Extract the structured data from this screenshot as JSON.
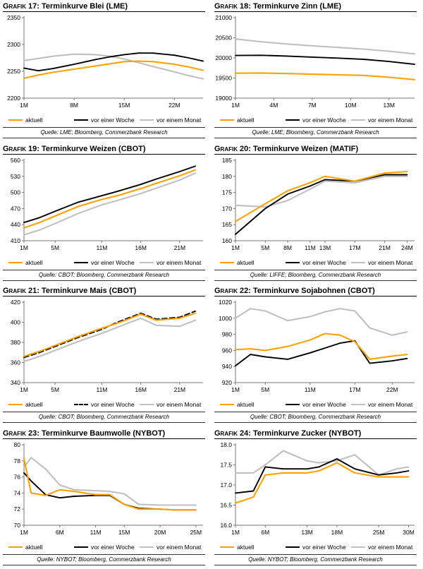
{
  "page": {
    "background": "#ffffff"
  },
  "colors": {
    "aktuell": "#FFA200",
    "woche": "#000000",
    "monat": "#C0C0C0",
    "axis": "#777777",
    "text": "#000000",
    "rule": "#333333"
  },
  "legend_labels": [
    "aktuell",
    "vor einer Woche",
    "vor einem Monat"
  ],
  "chart_data": [
    {
      "type": "line",
      "grafik_label": "Grafik 17:",
      "title": "Terminkurve Blei (LME)",
      "source": "Quelle: LME; Bloomberg, Commerzbank Research",
      "xtick_suffix": "M",
      "xlim": [
        1,
        26
      ],
      "xticks": [
        1,
        8,
        15,
        22
      ],
      "ylim": [
        2200,
        2350
      ],
      "yticks": [
        2200,
        2250,
        2300,
        2350
      ],
      "ytick_labels": [
        "2200",
        "2250",
        "2300",
        "2350"
      ],
      "x": [
        1,
        3,
        5,
        8,
        11,
        13,
        15,
        17,
        19,
        22,
        24,
        26
      ],
      "series": [
        {
          "name": "aktuell",
          "color": "aktuell",
          "dash": false,
          "values": [
            2237,
            2243,
            2248,
            2254,
            2260,
            2264,
            2268,
            2269,
            2268,
            2263,
            2258,
            2252
          ]
        },
        {
          "name": "vor einer Woche",
          "color": "woche",
          "dash": false,
          "values": [
            2256,
            2251,
            2255,
            2263,
            2272,
            2277,
            2281,
            2284,
            2284,
            2280,
            2275,
            2269
          ]
        },
        {
          "name": "vor einem Monat",
          "color": "monat",
          "dash": false,
          "values": [
            2270,
            2274,
            2278,
            2282,
            2281,
            2278,
            2273,
            2266,
            2259,
            2249,
            2242,
            2236
          ]
        }
      ]
    },
    {
      "type": "line",
      "grafik_label": "Grafik 18:",
      "title": "Terminkurve Zinn (LME)",
      "source": "Quelle: LME; Bloomberg, Commerzbank Research",
      "xtick_suffix": "M",
      "xlim": [
        1,
        15
      ],
      "xticks": [
        1,
        4,
        7,
        10,
        13
      ],
      "ylim": [
        19000,
        21000
      ],
      "yticks": [
        19000,
        19500,
        20000,
        20500,
        21000
      ],
      "ytick_labels": [
        "19000",
        "19500",
        "20000",
        "20500",
        "21000"
      ],
      "x": [
        1,
        3,
        5,
        7,
        9,
        11,
        13,
        15
      ],
      "series": [
        {
          "name": "aktuell",
          "color": "aktuell",
          "dash": false,
          "values": [
            19620,
            19625,
            19610,
            19595,
            19580,
            19565,
            19520,
            19460
          ]
        },
        {
          "name": "vor einer Woche",
          "color": "woche",
          "dash": false,
          "values": [
            20060,
            20065,
            20045,
            20020,
            19995,
            19965,
            19910,
            19840
          ]
        },
        {
          "name": "vor einem Monat",
          "color": "monat",
          "dash": false,
          "values": [
            20470,
            20400,
            20345,
            20300,
            20260,
            20220,
            20165,
            20100
          ]
        }
      ]
    },
    {
      "type": "line",
      "grafik_label": "Grafik 19:",
      "title": "Terminkurve Weizen (CBOT)",
      "source": "Quelle: CBOT; Bloomberg, Commerzbank Research",
      "xtick_suffix": "M",
      "xlim": [
        1,
        24
      ],
      "xticks": [
        1,
        5,
        11,
        16,
        21
      ],
      "ylim": [
        410,
        560
      ],
      "yticks": [
        410,
        440,
        470,
        500,
        530,
        560
      ],
      "ytick_labels": [
        "410",
        "440",
        "470",
        "500",
        "530",
        "560"
      ],
      "x": [
        1,
        3,
        5,
        8,
        11,
        13,
        16,
        18,
        21,
        23
      ],
      "series": [
        {
          "name": "aktuell",
          "color": "aktuell",
          "dash": false,
          "values": [
            434,
            444,
            456,
            474,
            487,
            494,
            507,
            517,
            531,
            542
          ]
        },
        {
          "name": "vor einer Woche",
          "color": "woche",
          "dash": false,
          "values": [
            444,
            453,
            465,
            482,
            494,
            502,
            515,
            525,
            539,
            549
          ]
        },
        {
          "name": "vor einem Monat",
          "color": "monat",
          "dash": false,
          "values": [
            421,
            430,
            442,
            461,
            477,
            485,
            498,
            508,
            523,
            536
          ]
        }
      ]
    },
    {
      "type": "line",
      "grafik_label": "Grafik 20:",
      "title": "Terminkurve Weizen (MATIF)",
      "source": "Quelle: LIFFE; Bloomberg, Commerzbank Research",
      "xtick_suffix": "M",
      "xlim": [
        1,
        25
      ],
      "xticks": [
        1,
        5,
        8,
        11,
        13,
        17,
        21,
        24
      ],
      "ylim": [
        160,
        185
      ],
      "yticks": [
        160,
        165,
        170,
        175,
        180,
        185
      ],
      "ytick_labels": [
        "160",
        "165",
        "170",
        "175",
        "180",
        "185"
      ],
      "x": [
        1,
        5,
        8,
        11,
        13,
        17,
        21,
        24
      ],
      "series": [
        {
          "name": "aktuell",
          "color": "aktuell",
          "dash": false,
          "values": [
            166,
            171.5,
            175.5,
            178,
            180,
            178.5,
            181,
            181.5
          ]
        },
        {
          "name": "vor einer Woche",
          "color": "woche",
          "dash": false,
          "values": [
            162,
            170,
            174.5,
            177,
            179,
            178.5,
            180.5,
            180.5
          ]
        },
        {
          "name": "vor einem Monat",
          "color": "monat",
          "dash": false,
          "values": [
            171,
            170.5,
            172.5,
            176,
            178.5,
            178,
            180,
            180
          ]
        }
      ]
    },
    {
      "type": "line",
      "grafik_label": "Grafik 21:",
      "title": "Terminkurve Mais (CBOT)",
      "source": "Quelle: CBOT; Bloomberg, Commerzbank Research",
      "xtick_suffix": "M",
      "xlim": [
        1,
        24
      ],
      "xticks": [
        1,
        5,
        11,
        16,
        21
      ],
      "ylim": [
        340,
        420
      ],
      "yticks": [
        340,
        360,
        380,
        400,
        420
      ],
      "ytick_labels": [
        "340",
        "360",
        "380",
        "400",
        "420"
      ],
      "x": [
        1,
        3,
        5,
        8,
        11,
        13,
        16,
        18,
        21,
        23
      ],
      "series": [
        {
          "name": "aktuell",
          "color": "aktuell",
          "dash": false,
          "values": [
            366,
            371,
            377,
            386,
            394,
            399,
            408,
            402,
            404,
            409
          ]
        },
        {
          "name": "vor einer Woche",
          "color": "woche",
          "dash": true,
          "values": [
            365,
            370,
            376,
            385,
            393,
            400,
            409,
            403,
            405,
            411
          ]
        },
        {
          "name": "vor einem Monat",
          "color": "monat",
          "dash": false,
          "values": [
            361,
            366,
            372,
            381,
            389,
            395,
            404,
            397,
            396,
            402
          ]
        }
      ]
    },
    {
      "type": "line",
      "grafik_label": "Grafik 22:",
      "title": "Terminkurve Sojabohnen (CBOT)",
      "source": "Quelle: CBOT; Bloomberg, Commerzbank Research",
      "xtick_suffix": "M",
      "xlim": [
        1,
        25
      ],
      "xticks": [
        1,
        5,
        11,
        17,
        22
      ],
      "ylim": [
        920,
        1020
      ],
      "yticks": [
        920,
        940,
        960,
        980,
        1000,
        1020
      ],
      "ytick_labels": [
        "920",
        "940",
        "960",
        "980",
        "1000",
        "1020"
      ],
      "x": [
        1,
        3,
        5,
        8,
        11,
        13,
        15,
        17,
        19,
        22,
        24
      ],
      "series": [
        {
          "name": "aktuell",
          "color": "aktuell",
          "dash": false,
          "values": [
            961,
            962,
            960,
            965,
            973,
            981,
            979,
            971,
            949,
            953,
            955
          ]
        },
        {
          "name": "vor einer Woche",
          "color": "woche",
          "dash": false,
          "values": [
            941,
            955,
            952,
            949,
            957,
            963,
            969,
            972,
            944,
            947,
            950
          ]
        },
        {
          "name": "vor einem Monat",
          "color": "monat",
          "dash": false,
          "values": [
            1000,
            1012,
            1009,
            997,
            1002,
            1008,
            1012,
            1009,
            988,
            979,
            983
          ]
        }
      ]
    },
    {
      "type": "line",
      "grafik_label": "Grafik 23:",
      "title": "Terminkurve Baumwolle (NYBOT)",
      "source": "Quelle: NYBOT; Bloomberg, Commerzbank Research",
      "xtick_suffix": "M",
      "xlim": [
        1,
        26
      ],
      "xticks": [
        1,
        6,
        11,
        15,
        20,
        25
      ],
      "ylim": [
        70,
        80
      ],
      "yticks": [
        70,
        72,
        74,
        76,
        78,
        80
      ],
      "ytick_labels": [
        "70",
        "72",
        "74",
        "76",
        "78",
        "80"
      ],
      "x": [
        1,
        2,
        4,
        6,
        8,
        11,
        13,
        15,
        17,
        20,
        22,
        25
      ],
      "series": [
        {
          "name": "aktuell",
          "color": "aktuell",
          "dash": false,
          "values": [
            78.3,
            74.0,
            73.7,
            74.4,
            74.2,
            73.8,
            73.8,
            72.6,
            72.0,
            72.0,
            71.9,
            71.9
          ]
        },
        {
          "name": "vor einer Woche",
          "color": "woche",
          "dash": false,
          "values": [
            76.5,
            75.5,
            73.8,
            73.4,
            73.6,
            73.7,
            73.7,
            72.6,
            72.1,
            72.0,
            71.9,
            71.9
          ]
        },
        {
          "name": "vor einem Monat",
          "color": "monat",
          "dash": false,
          "values": [
            77.2,
            78.4,
            77.0,
            75.0,
            74.4,
            74.3,
            74.2,
            73.9,
            72.6,
            72.5,
            72.5,
            72.5
          ]
        }
      ]
    },
    {
      "type": "line",
      "grafik_label": "Grafik 24:",
      "title": "Terminkurve Zucker (NYBOT)",
      "source": "Quelle: NYBOT; Bloomberg, Commerzbank Research",
      "xtick_suffix": "M",
      "xlim": [
        1,
        31
      ],
      "xticks": [
        1,
        6,
        13,
        18,
        25,
        30
      ],
      "ylim": [
        16.0,
        18.0
      ],
      "yticks": [
        16.0,
        16.5,
        17.0,
        17.5,
        18.0
      ],
      "ytick_labels": [
        "16.0",
        "16.5",
        "17.0",
        "17.5",
        "18.0"
      ],
      "x": [
        1,
        4,
        6,
        9,
        13,
        15,
        18,
        21,
        25,
        28,
        30
      ],
      "series": [
        {
          "name": "aktuell",
          "color": "aktuell",
          "dash": false,
          "values": [
            16.55,
            16.7,
            17.25,
            17.3,
            17.3,
            17.35,
            17.55,
            17.3,
            17.2,
            17.2,
            17.2
          ]
        },
        {
          "name": "vor einer Woche",
          "color": "woche",
          "dash": false,
          "values": [
            16.8,
            16.85,
            17.45,
            17.4,
            17.4,
            17.45,
            17.65,
            17.4,
            17.25,
            17.3,
            17.35
          ]
        },
        {
          "name": "vor einem Monat",
          "color": "monat",
          "dash": false,
          "values": [
            17.3,
            17.3,
            17.5,
            17.85,
            17.6,
            17.55,
            17.6,
            17.75,
            17.25,
            17.4,
            17.45
          ]
        }
      ]
    }
  ]
}
